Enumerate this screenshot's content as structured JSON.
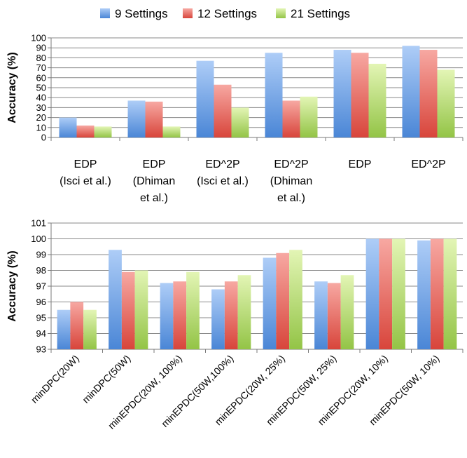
{
  "colors": {
    "series": [
      {
        "top": "#aecdf7",
        "bottom": "#4a86d6"
      },
      {
        "top": "#f7a8a2",
        "bottom": "#d8453b"
      },
      {
        "top": "#e3f5b5",
        "bottom": "#93c446"
      }
    ],
    "grid": "#8a8a8a",
    "axis": "#7a7a7a"
  },
  "chart_data": [
    {
      "type": "bar",
      "legend_position": "top",
      "series": [
        {
          "name": "9 Settings",
          "values": [
            20,
            37,
            77,
            85,
            88,
            92
          ]
        },
        {
          "name": "12 Settings",
          "values": [
            12,
            36,
            53,
            37,
            85,
            88
          ]
        },
        {
          "name": "21 Settings",
          "values": [
            11,
            11,
            30,
            41,
            74,
            68
          ]
        }
      ],
      "categories": [
        [
          "EDP",
          "(Isci et al.)"
        ],
        [
          "EDP",
          "(Dhiman",
          "et al.)"
        ],
        [
          "ED^2P",
          "(Isci et al.)"
        ],
        [
          "ED^2P",
          "(Dhiman",
          "et al.)"
        ],
        [
          "EDP"
        ],
        [
          "ED^2P"
        ]
      ],
      "ylabel": "Accuracy (%)",
      "ylim": [
        0,
        100
      ],
      "yticks": [
        0,
        10,
        20,
        30,
        40,
        50,
        60,
        70,
        80,
        90,
        100
      ],
      "grid": true
    },
    {
      "type": "bar",
      "series": [
        {
          "name": "9 Settings",
          "values": [
            95.5,
            99.3,
            97.2,
            96.8,
            98.8,
            97.3,
            100,
            99.9
          ]
        },
        {
          "name": "12 Settings",
          "values": [
            96.0,
            97.9,
            97.3,
            97.3,
            99.1,
            97.2,
            100,
            100
          ]
        },
        {
          "name": "21 Settings",
          "values": [
            95.5,
            98.0,
            97.9,
            97.7,
            99.3,
            97.7,
            100,
            100
          ]
        }
      ],
      "categories": [
        "minDPC(20W)",
        "minDPC(50W)",
        "minEPDC(20W, 100%)",
        "minEPDC(50W,100%)",
        "minEPDC(20W, 25%)",
        "minEPDC(50W, 25%)",
        "minEPDC(20W, 10%)",
        "minEPDC(50W, 10%)"
      ],
      "ylabel": "Accuracy (%)",
      "ylim": [
        93,
        101
      ],
      "yticks": [
        93,
        94,
        95,
        96,
        97,
        98,
        99,
        100,
        101
      ],
      "grid": true
    }
  ]
}
